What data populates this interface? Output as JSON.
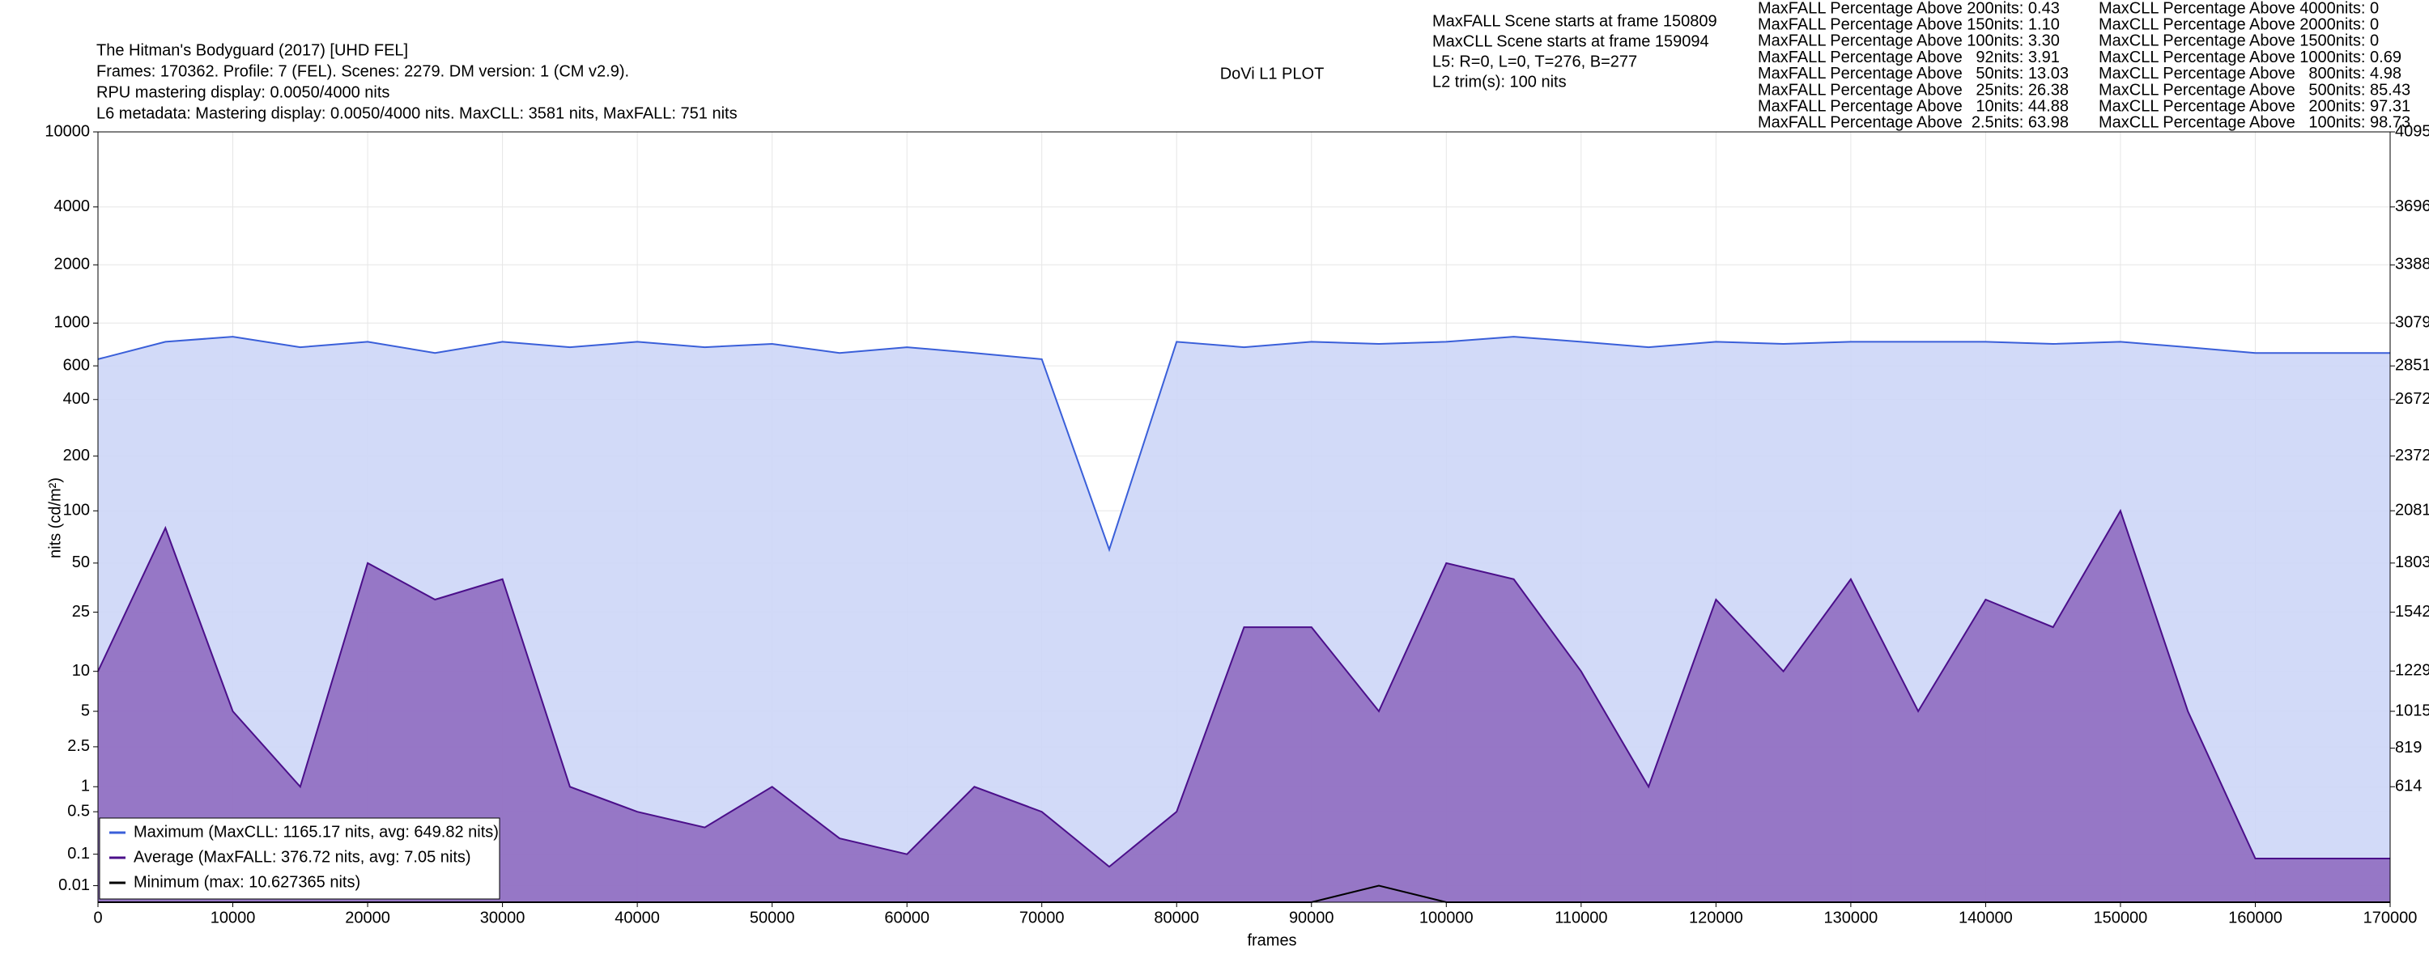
{
  "chart_data": {
    "type": "line",
    "title": "DoVi L1 PLOT",
    "info_lines": [
      "The Hitman's Bodyguard (2017) [UHD FEL]",
      "Frames: 170362. Profile: 7 (FEL). Scenes: 2279. DM version: 1 (CM v2.9).",
      "RPU mastering display: 0.0050/4000 nits",
      "L6 metadata: Mastering display: 0.0050/4000 nits. MaxCLL: 3581 nits, MaxFALL: 751 nits"
    ],
    "scene_lines": [
      "MaxFALL Scene starts at frame 150809",
      "MaxCLL Scene starts at frame 159094",
      "L5: R=0, L=0, T=276, B=277",
      "L2 trim(s): 100 nits"
    ],
    "maxfall_above": [
      "MaxFALL Percentage Above 200nits: 0.43",
      "MaxFALL Percentage Above 150nits: 1.10",
      "MaxFALL Percentage Above 100nits: 3.30",
      "MaxFALL Percentage Above   92nits: 3.91",
      "MaxFALL Percentage Above   50nits: 13.03",
      "MaxFALL Percentage Above   25nits: 26.38",
      "MaxFALL Percentage Above   10nits: 44.88",
      "MaxFALL Percentage Above  2.5nits: 63.98"
    ],
    "maxcll_above": [
      "MaxCLL Percentage Above 4000nits: 0",
      "MaxCLL Percentage Above 2000nits: 0",
      "MaxCLL Percentage Above 1500nits: 0",
      "MaxCLL Percentage Above 1000nits: 0.69",
      "MaxCLL Percentage Above   800nits: 4.98",
      "MaxCLL Percentage Above   500nits: 85.43",
      "MaxCLL Percentage Above   200nits: 97.31",
      "MaxCLL Percentage Above   100nits: 98.73"
    ],
    "xlabel": "frames",
    "ylabel": "nits (cd/m²)",
    "yscale": "pq",
    "grid": true,
    "legend": "lower left",
    "x": [
      0,
      5000,
      10000,
      15000,
      20000,
      25000,
      30000,
      35000,
      40000,
      45000,
      50000,
      55000,
      60000,
      65000,
      70000,
      75000,
      80000,
      85000,
      90000,
      95000,
      100000,
      105000,
      110000,
      115000,
      120000,
      125000,
      130000,
      135000,
      140000,
      145000,
      150000,
      155000,
      160000,
      165000,
      170000
    ],
    "xlim": [
      0,
      170000
    ],
    "xticks": [
      0,
      10000,
      20000,
      30000,
      40000,
      50000,
      60000,
      70000,
      80000,
      90000,
      100000,
      110000,
      120000,
      130000,
      140000,
      150000,
      160000,
      170000
    ],
    "ylim": [
      0,
      10000
    ],
    "yticks": [
      0.01,
      0.1,
      0.5,
      1,
      2.5,
      5,
      10,
      25,
      50,
      100,
      200,
      400,
      600,
      1000,
      2000,
      4000,
      10000
    ],
    "y2lim": [
      0,
      4095
    ],
    "y2ticks": [
      614,
      819,
      1015,
      1229,
      1542,
      1803,
      2081,
      2372,
      2672,
      2851,
      3079,
      3388,
      3696,
      4095
    ],
    "series": [
      {
        "name": "Maximum (MaxCLL: 1165.17 nits, avg: 649.82 nits)",
        "color": "#3a5fd9",
        "fill_color": "#cdd6f7",
        "values": [
          650,
          800,
          850,
          750,
          800,
          700,
          800,
          750,
          800,
          750,
          780,
          700,
          750,
          700,
          650,
          60,
          800,
          750,
          800,
          780,
          800,
          850,
          800,
          750,
          800,
          780,
          800,
          800,
          800,
          780,
          800,
          750,
          700,
          700,
          700
        ]
      },
      {
        "name": "Average (MaxFALL: 376.72 nits, avg: 7.05 nits)",
        "color": "#4b0f8a",
        "fill_color": "#8f6cc0",
        "values": [
          10,
          80,
          5,
          1,
          50,
          30,
          40,
          1,
          0.5,
          0.3,
          1,
          0.2,
          0.1,
          1,
          0.5,
          0.05,
          0.5,
          20,
          20,
          5,
          50,
          40,
          10,
          1,
          30,
          10,
          40,
          5,
          30,
          20,
          100,
          5,
          0.08,
          0.08,
          0.08
        ]
      },
      {
        "name": "Minimum (max: 10.627365 nits)",
        "color": "#000000",
        "values": [
          0,
          0,
          0,
          0,
          0,
          0,
          0,
          0,
          0,
          0,
          0,
          0,
          0,
          0,
          0,
          0,
          0,
          0,
          0,
          0.01,
          0,
          0,
          0,
          0,
          0,
          0,
          0,
          0,
          0,
          0,
          0,
          0,
          0,
          0,
          0
        ]
      }
    ]
  }
}
